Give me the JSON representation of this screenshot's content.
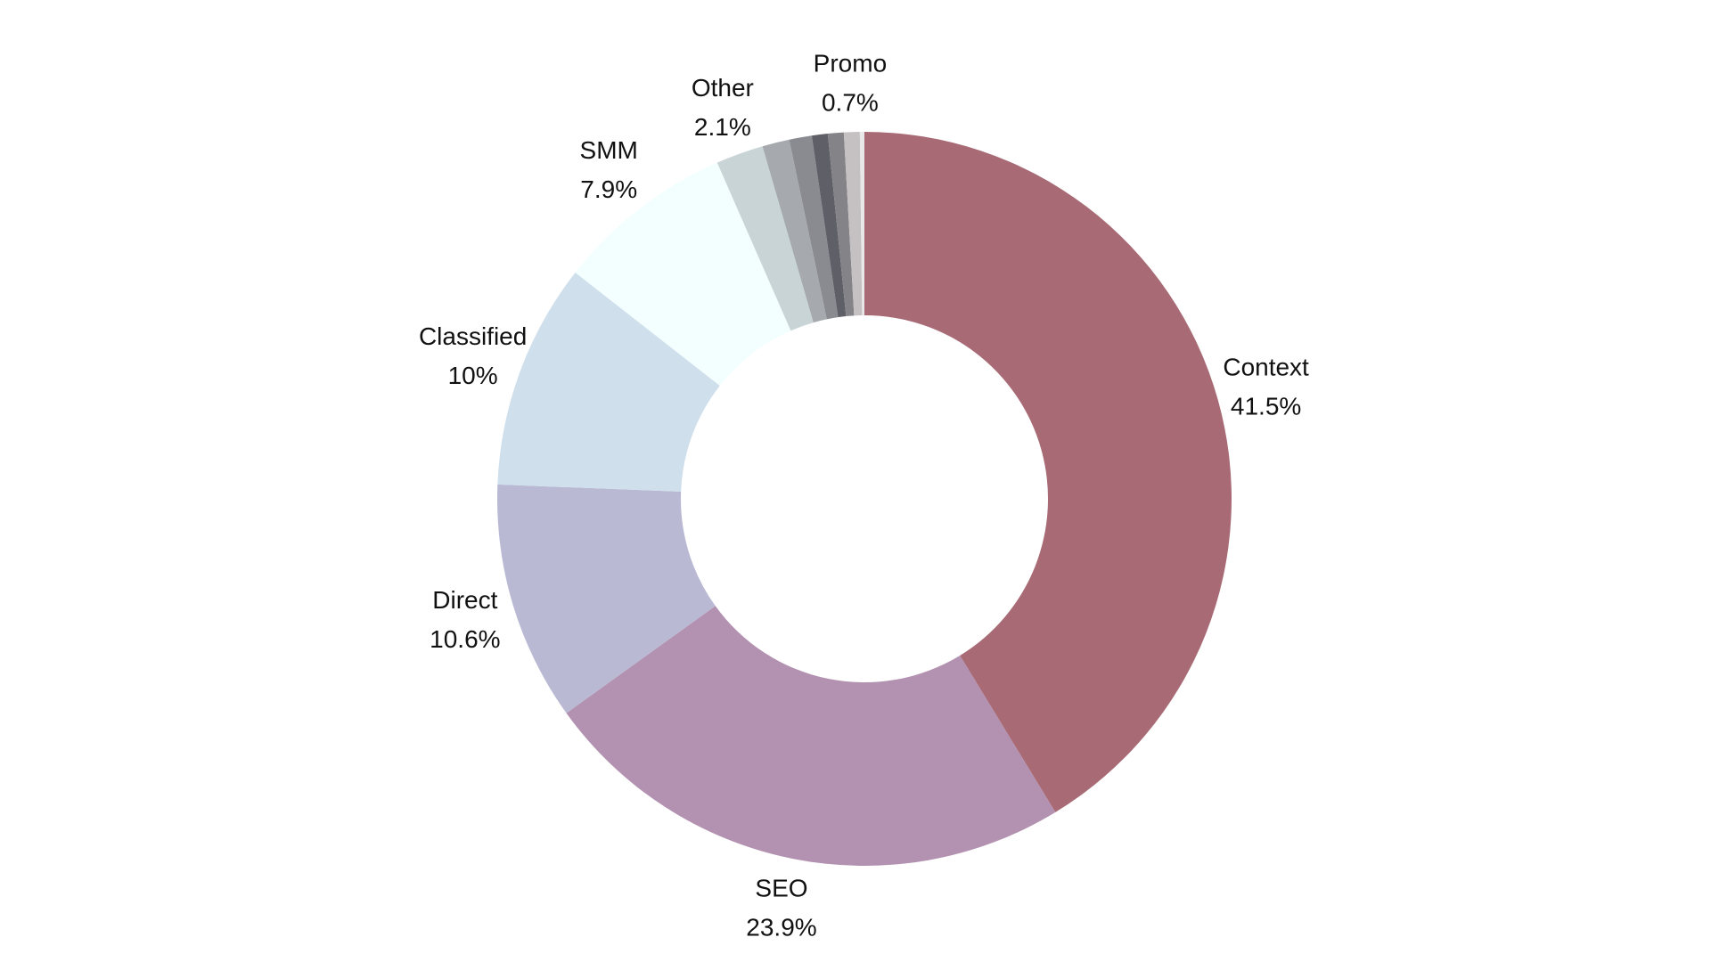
{
  "chart_data": {
    "type": "pie",
    "donut": true,
    "start": "12 o'clock",
    "direction": "clockwise",
    "slices": [
      {
        "label": "Context",
        "value": 41.5,
        "value_label": "41.5%",
        "color": "#a86b76"
      },
      {
        "label": "SEO",
        "value": 23.9,
        "value_label": "23.9%",
        "color": "#b391b0"
      },
      {
        "label": "Direct",
        "value": 10.6,
        "value_label": "10.6%",
        "color": "#b9b9d4"
      },
      {
        "label": "Classified",
        "value": 10.0,
        "value_label": "10%",
        "color": "#cfdfec"
      },
      {
        "label": "SMM",
        "value": 7.9,
        "value_label": "7.9%",
        "color": "#f3ffff"
      },
      {
        "label": "Other",
        "value": 2.1,
        "value_label": "2.1%",
        "color": "#c8d4d6"
      },
      {
        "label": "",
        "value": 1.2,
        "value_label": "",
        "color": "#a6aaae"
      },
      {
        "label": "",
        "value": 1.0,
        "value_label": "",
        "color": "#8a8b91"
      },
      {
        "label": "",
        "value": 0.7,
        "value_label": "",
        "color": "#5e5f67"
      },
      {
        "label": "",
        "value": 0.7,
        "value_label": "",
        "color": "#848387"
      },
      {
        "label": "Promo",
        "value": 0.7,
        "value_label": "0.7%",
        "color": "#c5c0c2"
      },
      {
        "label": "",
        "value": 0.2,
        "value_label": "",
        "color": "#e8e8e8"
      }
    ]
  }
}
